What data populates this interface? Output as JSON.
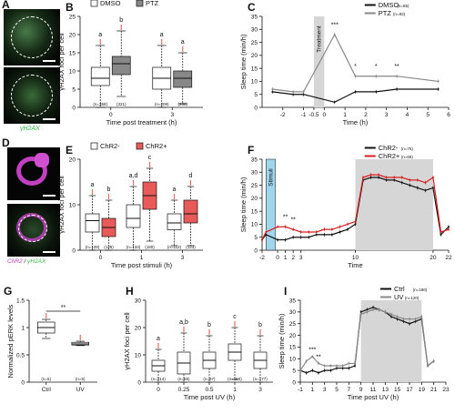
{
  "panels": {
    "A": {
      "label": "A",
      "stain": "γH2AX",
      "stain_color": "#39b54a"
    },
    "D": {
      "label": "D",
      "stain_a": "ChR2",
      "stain_b": "γH2AX",
      "sep": " / ",
      "color_a": "#c040c0",
      "color_b": "#39b54a"
    }
  },
  "chart_data": [
    {
      "id": "B",
      "label": "B",
      "type": "box",
      "ylabel": "γH2AX foci per cell",
      "xlabel": "Time post treatment (h)",
      "ylim": [
        0,
        25
      ],
      "yticks": [
        0,
        5,
        10,
        15,
        20,
        25
      ],
      "legend": [
        {
          "name": "DMSO",
          "color": "#ffffff"
        },
        {
          "name": "PTZ",
          "color": "#888888"
        }
      ],
      "groups": [
        {
          "x": "0",
          "boxes": [
            {
              "series": "DMSO",
              "n": "(n=358)",
              "sig": "a",
              "q1": 6,
              "median": 8,
              "q3": 11,
              "lo": 0,
              "hi": 17,
              "color": "#ffffff"
            },
            {
              "series": "PTZ",
              "n": "(321)",
              "sig": "b",
              "q1": 9,
              "median": 12,
              "q3": 14,
              "lo": 3,
              "hi": 21,
              "color": "#888888"
            }
          ]
        },
        {
          "x": "3",
          "boxes": [
            {
              "series": "DMSO",
              "n": "(n=209)",
              "sig": "a",
              "q1": 5,
              "median": 8,
              "q3": 11,
              "lo": 0,
              "hi": 17,
              "color": "#ffffff"
            },
            {
              "series": "PTZ",
              "n": "(268)",
              "sig": "a",
              "q1": 5.5,
              "median": 8,
              "q3": 10,
              "lo": 1,
              "hi": 15,
              "color": "#888888"
            }
          ]
        }
      ]
    },
    {
      "id": "C",
      "label": "C",
      "type": "line",
      "ylabel": "Sleep time (min/h)",
      "xlabel": "Time (h)",
      "ylim": [
        0,
        35
      ],
      "yticks": [
        0,
        5,
        10,
        15,
        20,
        25,
        30,
        35
      ],
      "xlim": [
        -3,
        6
      ],
      "xticks": [
        "-2",
        "-1",
        "-0.5",
        "0",
        "1",
        "2",
        "3",
        "4",
        "5",
        "6"
      ],
      "xtick_vals": [
        -2,
        -1,
        -0.5,
        0,
        1,
        2,
        3,
        4,
        5,
        6
      ],
      "shade": {
        "from": -0.5,
        "to": 0,
        "label": "Treatment"
      },
      "series": [
        {
          "name": "DMSO",
          "n": "(n=65)",
          "color": "#111111",
          "x": [
            -2.5,
            -1.5,
            -1,
            0.5,
            1.5,
            2.5,
            3.5,
            5.5
          ],
          "y": [
            6,
            5,
            5,
            2,
            6,
            6,
            7,
            7
          ]
        },
        {
          "name": "PTZ",
          "n": "(n=83)",
          "color": "#888888",
          "x": [
            -2.5,
            -1.5,
            -1,
            0.5,
            1.5,
            2.5,
            3.5,
            5.5
          ],
          "y": [
            7,
            6,
            6,
            28,
            12,
            12,
            12,
            10
          ]
        }
      ],
      "annotations": [
        {
          "x": 0.5,
          "y": 31,
          "text": "***"
        },
        {
          "x": 1.5,
          "y": 15,
          "text": "*"
        },
        {
          "x": 2.5,
          "y": 15,
          "text": "*"
        },
        {
          "x": 3.5,
          "y": 15,
          "text": "**"
        }
      ]
    },
    {
      "id": "E",
      "label": "E",
      "type": "box",
      "ylabel": "γH2AX foci per cell",
      "xlabel": "Time post stimuli (h)",
      "ylim": [
        0,
        20
      ],
      "yticks": [
        0,
        10,
        20
      ],
      "legend": [
        {
          "name": "ChR2-",
          "color": "#ffffff"
        },
        {
          "name": "ChR2+",
          "color": "#e85a5a"
        }
      ],
      "groups": [
        {
          "x": "0",
          "boxes": [
            {
              "series": "ChR2-",
              "n": "(n=128)",
              "sig": "a",
              "q1": 4,
              "median": 6.5,
              "q3": 8,
              "lo": 0,
              "hi": 12,
              "color": "#ffffff"
            },
            {
              "series": "ChR2+",
              "n": "(128)",
              "sig": "b",
              "q1": 3,
              "median": 5,
              "q3": 7,
              "lo": 0,
              "hi": 11,
              "color": "#e85a5a"
            }
          ]
        },
        {
          "x": "1",
          "boxes": [
            {
              "series": "ChR2-",
              "n": "(n=133)",
              "sig": "a,d",
              "q1": 5,
              "median": 7,
              "q3": 10,
              "lo": 0,
              "hi": 14,
              "color": "#ffffff"
            },
            {
              "series": "ChR2+",
              "n": "(180)",
              "sig": "c",
              "q1": 9,
              "median": 12,
              "q3": 15,
              "lo": 2,
              "hi": 18,
              "color": "#e85a5a"
            }
          ]
        },
        {
          "x": "3",
          "boxes": [
            {
              "series": "ChR2-",
              "n": "(n=112)",
              "sig": "a",
              "q1": 4.5,
              "median": 6,
              "q3": 8,
              "lo": 1,
              "hi": 11,
              "color": "#ffffff"
            },
            {
              "series": "ChR2+",
              "n": "(123)",
              "sig": "d",
              "q1": 6,
              "median": 8,
              "q3": 11,
              "lo": 1,
              "hi": 14,
              "color": "#e85a5a"
            }
          ]
        }
      ]
    },
    {
      "id": "F",
      "label": "F",
      "type": "line",
      "ylabel": "Sleep time (min/h)",
      "xlabel": "Time",
      "ylim": [
        0,
        35
      ],
      "yticks": [
        0,
        5,
        10,
        15,
        20,
        25,
        30,
        35
      ],
      "xlim": [
        -2,
        22
      ],
      "xticks": [
        "-2",
        "0",
        "1",
        "2",
        "3",
        "10",
        "20",
        "22"
      ],
      "xtick_vals": [
        -2,
        0,
        1,
        2,
        3,
        10,
        20,
        22
      ],
      "stim": {
        "from": -1.5,
        "to": -0.3,
        "label": "Stimuli"
      },
      "shade": {
        "from": 10,
        "to": 20
      },
      "series": [
        {
          "name": "ChR2-",
          "n": "(n=75)",
          "color": "#111111",
          "x": [
            -2,
            -1.5,
            0,
            1,
            2,
            3,
            4,
            5,
            6,
            7,
            8,
            9,
            10,
            11,
            12,
            13,
            14,
            15,
            16,
            17,
            18,
            19,
            20,
            21,
            22
          ],
          "y": [
            4,
            6,
            4,
            4,
            5,
            5,
            5,
            6,
            6,
            6,
            7,
            8,
            10,
            27,
            28,
            28,
            27,
            27,
            26,
            25,
            24,
            23,
            24,
            6,
            9
          ]
        },
        {
          "name": "ChR2+",
          "n": "(n=69)",
          "color": "#d42020",
          "x": [
            -2,
            -1.5,
            0,
            1,
            2,
            3,
            4,
            5,
            6,
            7,
            8,
            9,
            10,
            11,
            12,
            13,
            14,
            15,
            16,
            17,
            18,
            19,
            20,
            21,
            22
          ],
          "y": [
            4,
            7,
            9,
            9,
            8,
            7,
            7,
            7,
            8,
            8,
            9,
            10,
            11,
            28,
            29,
            29,
            28,
            28,
            28,
            27,
            27,
            26,
            28,
            7,
            8
          ]
        }
      ],
      "annotations": [
        {
          "x": 1,
          "y": 12,
          "text": "**"
        },
        {
          "x": 2,
          "y": 11,
          "text": "**"
        }
      ]
    },
    {
      "id": "G",
      "label": "G",
      "type": "box",
      "ylabel": "Normalized pERK levels",
      "xlabel": "",
      "ylim": [
        0,
        1.5
      ],
      "yticks": [
        0,
        0.5,
        1,
        1.5
      ],
      "ytick_labels": [
        "0",
        "0.5",
        "1",
        "1.5"
      ],
      "groups": [
        {
          "x": "Ctrl",
          "boxes": [
            {
              "series": "Ctrl",
              "n": "(n=5)",
              "sig": "",
              "q1": 0.9,
              "median": 1.0,
              "q3": 1.1,
              "lo": 0.8,
              "hi": 1.15,
              "color": "#ffffff"
            }
          ]
        },
        {
          "x": "UV",
          "boxes": [
            {
              "series": "UV",
              "n": "(n=5)",
              "sig": "",
              "q1": 0.68,
              "median": 0.7,
              "q3": 0.73,
              "lo": 0.67,
              "hi": 0.75,
              "color": "#ffffff"
            }
          ]
        }
      ],
      "bracket": "**"
    },
    {
      "id": "H",
      "label": "H",
      "type": "box",
      "ylabel": "γH2AX foci per cell",
      "xlabel": "Time post UV (h)",
      "ylim": [
        0,
        30
      ],
      "yticks": [
        0,
        10,
        20,
        30
      ],
      "groups": [
        {
          "x": "0",
          "boxes": [
            {
              "series": "UV",
              "n": "(n=214)",
              "sig": "a",
              "q1": 4,
              "median": 6,
              "q3": 8,
              "lo": 0,
              "hi": 12,
              "color": "#ffffff"
            }
          ]
        },
        {
          "x": "0.25",
          "boxes": [
            {
              "series": "UV",
              "n": "(n=65)",
              "sig": "a,b",
              "q1": 3,
              "median": 7,
              "q3": 11,
              "lo": 0,
              "hi": 18,
              "color": "#ffffff"
            }
          ]
        },
        {
          "x": "0.5",
          "boxes": [
            {
              "series": "UV",
              "n": "(n=97)",
              "sig": "b",
              "q1": 5,
              "median": 8,
              "q3": 11,
              "lo": 0,
              "hi": 17,
              "color": "#ffffff"
            }
          ]
        },
        {
          "x": "1",
          "boxes": [
            {
              "series": "UV",
              "n": "(n=150)",
              "sig": "c",
              "q1": 8,
              "median": 11,
              "q3": 14,
              "lo": 1,
              "hi": 20,
              "color": "#ffffff"
            }
          ]
        },
        {
          "x": "3",
          "boxes": [
            {
              "series": "UV",
              "n": "(n=177)",
              "sig": "b",
              "q1": 5,
              "median": 8,
              "q3": 11,
              "lo": 0,
              "hi": 17,
              "color": "#ffffff"
            }
          ]
        }
      ]
    },
    {
      "id": "I",
      "label": "I",
      "type": "line",
      "ylabel": "Sleep time (min/h)",
      "xlabel": "Time post UV (h)",
      "ylim": [
        0,
        35
      ],
      "yticks": [
        0,
        5,
        10,
        15,
        20,
        25,
        30,
        35
      ],
      "xlim": [
        -1,
        23
      ],
      "xticks": [
        "-1",
        "1",
        "3",
        "5",
        "7",
        "9",
        "11",
        "13",
        "15",
        "17",
        "19",
        "21",
        "23"
      ],
      "xtick_vals": [
        -1,
        1,
        3,
        5,
        7,
        9,
        11,
        13,
        15,
        17,
        19,
        21,
        23
      ],
      "shade": {
        "from": 9,
        "to": 19
      },
      "series": [
        {
          "name": "Ctrl",
          "n": "(n=180)",
          "color": "#111111",
          "x": [
            -1,
            0,
            1,
            2,
            3,
            4,
            5,
            6,
            7,
            8,
            9,
            10,
            11,
            12,
            13,
            14,
            15,
            16,
            17,
            18,
            19,
            20,
            21
          ],
          "y": [
            5,
            4,
            5,
            4,
            5,
            5,
            6,
            6,
            6,
            7,
            30,
            31,
            32,
            31,
            30,
            28,
            27,
            26,
            25,
            26,
            27,
            7,
            9
          ]
        },
        {
          "name": "UV",
          "n": "(n=120)",
          "color": "#888888",
          "x": [
            -1,
            0,
            1,
            2,
            3,
            4,
            5,
            6,
            7,
            8,
            9,
            10,
            11,
            12,
            13,
            14,
            15,
            16,
            17,
            18,
            19,
            20,
            21
          ],
          "y": [
            5,
            9,
            11,
            8,
            7,
            7,
            7,
            7,
            8,
            8,
            29,
            30,
            31,
            31,
            30,
            29,
            28,
            27,
            27,
            27,
            28,
            7,
            9
          ]
        }
      ],
      "annotations": [
        {
          "x": 1,
          "y": 13,
          "text": "***"
        },
        {
          "x": 2,
          "y": 10,
          "text": "**"
        }
      ]
    }
  ]
}
